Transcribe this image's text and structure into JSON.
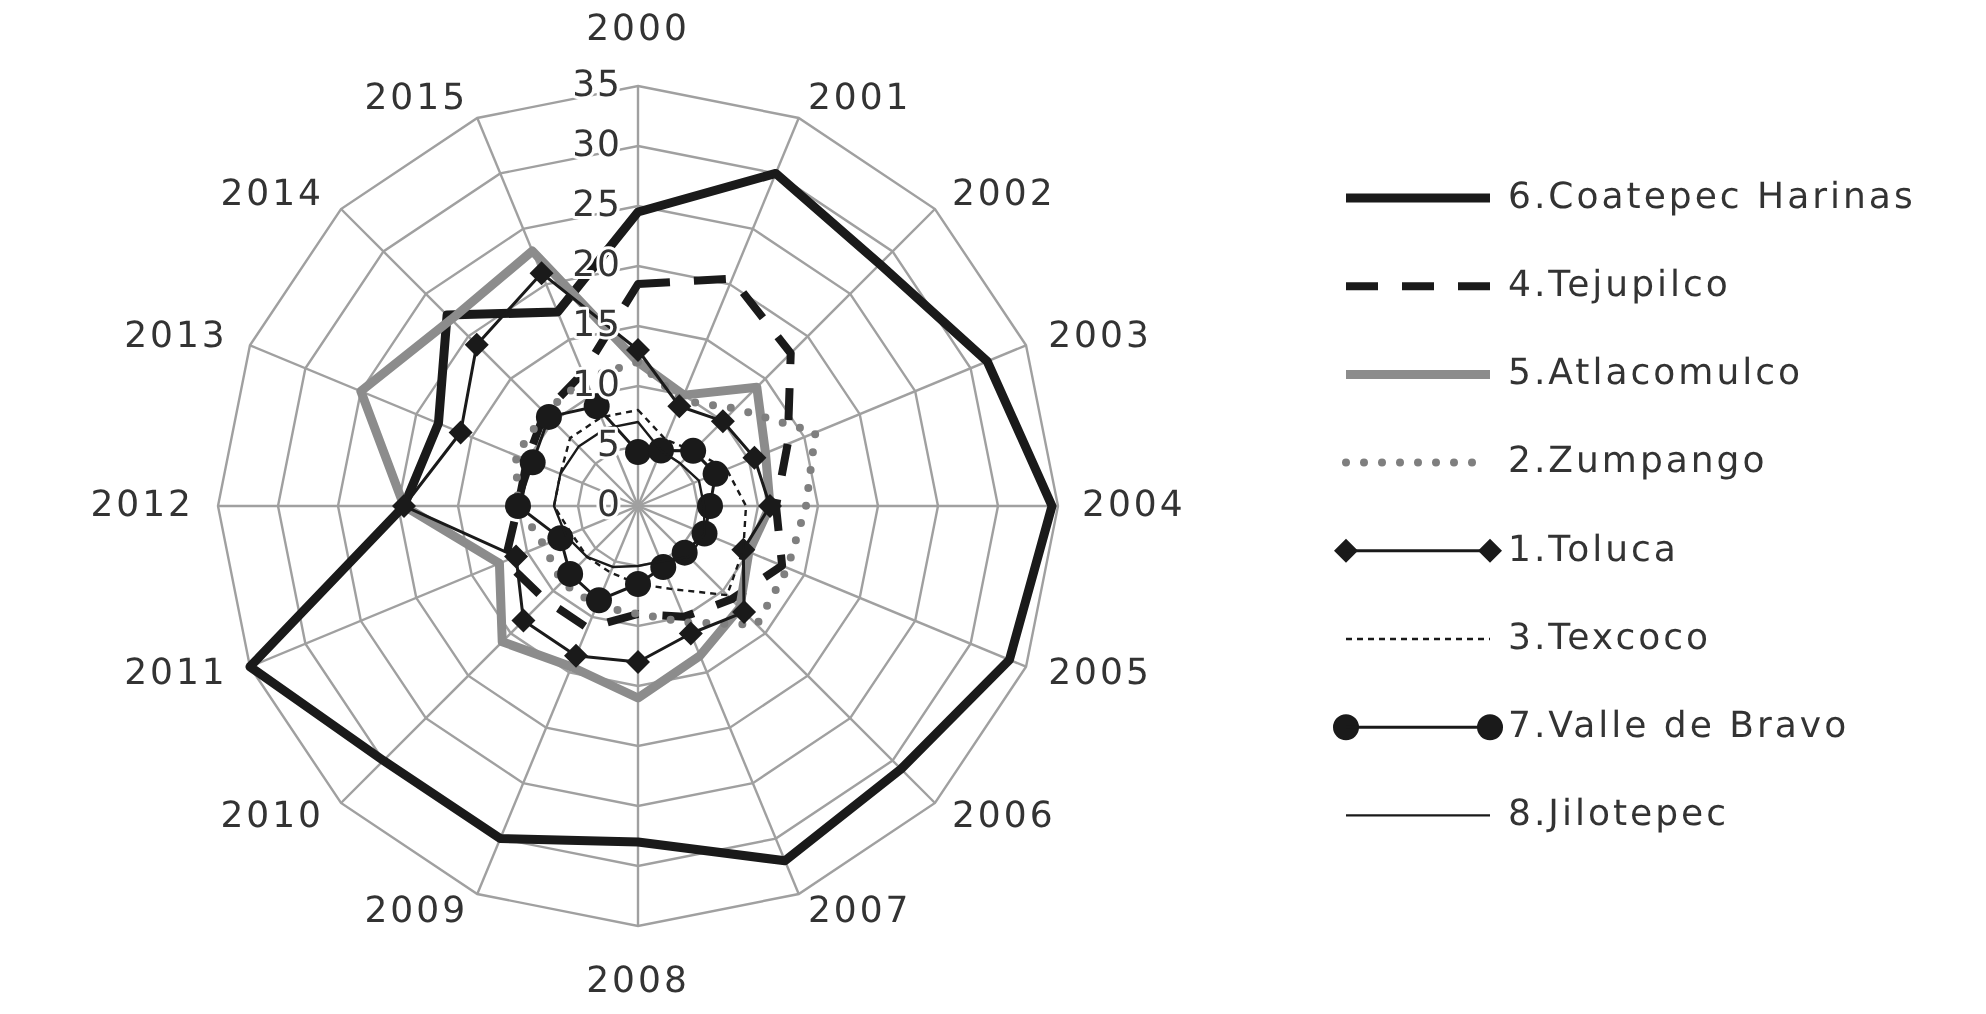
{
  "chart_data": {
    "type": "radar",
    "categories": [
      "2000",
      "2001",
      "2002",
      "2003",
      "2004",
      "2005",
      "2006",
      "2007",
      "2008",
      "2009",
      "2010",
      "2011",
      "2012",
      "2013",
      "2014",
      "2015"
    ],
    "ylim": [
      0,
      35
    ],
    "yticks": [
      0,
      5,
      10,
      15,
      20,
      25,
      30,
      35
    ],
    "grid": true,
    "legend": "right",
    "series": [
      {
        "name": "6.Coatepec Harinas",
        "color": "#1a1a1a",
        "line_style": "solid",
        "marker": "none",
        "values": [
          24.5,
          30,
          28.5,
          31.5,
          34.5,
          33.5,
          31,
          32,
          28,
          30,
          30,
          35,
          19.5,
          18,
          22.5,
          17.5
        ]
      },
      {
        "name": "4.Tejupilco",
        "color": "#1a1a1a",
        "line_style": "dashed",
        "marker": "none",
        "values": [
          18.5,
          20.5,
          18,
          13.5,
          11.5,
          13,
          11,
          10,
          9,
          11,
          11,
          12,
          10,
          10,
          11,
          12
        ]
      },
      {
        "name": "5.Atlacomulco",
        "color": "#8c8c8c",
        "line_style": "solid",
        "marker": "none",
        "values": [
          12,
          10,
          14,
          11.5,
          11,
          10,
          12,
          13.5,
          16,
          14.5,
          16,
          12.5,
          19.5,
          25,
          22,
          23
        ]
      },
      {
        "name": "2.Zumpango",
        "color": "#7f7f7f",
        "line_style": "dotted",
        "marker": "none",
        "values": [
          12,
          9.5,
          11.5,
          16,
          14,
          13.5,
          14,
          10.5,
          9,
          9,
          9,
          8.5,
          10,
          11,
          11,
          11.5
        ]
      },
      {
        "name": "1.Toluca",
        "color": "#1a1a1a",
        "line_style": "solid",
        "marker": "diamond",
        "values": [
          13,
          9,
          10,
          10.5,
          11,
          9.5,
          12.5,
          11.5,
          13,
          13.5,
          13.5,
          11,
          19.5,
          16,
          19,
          21
        ]
      },
      {
        "name": "3.Texcoco",
        "color": "#1a1a1a",
        "line_style": "dashed",
        "marker": "none",
        "values": [
          8,
          6,
          6.5,
          8,
          9,
          9.5,
          10.5,
          7.5,
          6.5,
          6,
          6,
          6,
          7,
          7,
          8,
          8
        ]
      },
      {
        "name": "7.Valle de Bravo",
        "color": "#1a1a1a",
        "line_style": "solid",
        "marker": "circle",
        "values": [
          4.5,
          5,
          6.5,
          7,
          6,
          6,
          5.5,
          5.5,
          6.5,
          8.5,
          8,
          7,
          10,
          9.5,
          10.5,
          9
        ]
      },
      {
        "name": "8.Jilotepec",
        "color": "#1a1a1a",
        "line_style": "solid",
        "marker": "none",
        "values": [
          7,
          5,
          5,
          5.5,
          5.5,
          6,
          6,
          5,
          5,
          5.5,
          6,
          6.5,
          7,
          7,
          7,
          7
        ]
      }
    ]
  }
}
